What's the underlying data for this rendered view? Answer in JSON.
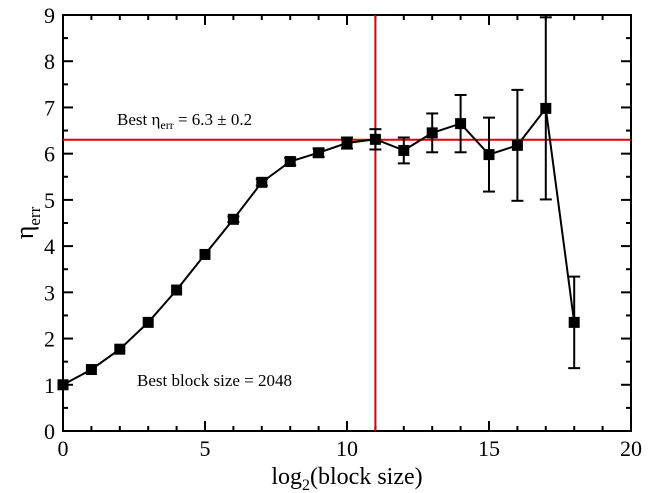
{
  "chart_data": {
    "type": "line",
    "xlabel": "log",
    "xlabel_sub": "2",
    "xlabel_tail": "(block size)",
    "ylabel": "η",
    "ylabel_sub": "err",
    "xlim": [
      0,
      20
    ],
    "ylim": [
      0,
      9
    ],
    "x_ticks": [
      0,
      5,
      10,
      15,
      20
    ],
    "y_ticks": [
      0,
      1,
      2,
      3,
      4,
      5,
      6,
      7,
      8,
      9
    ],
    "grid": false,
    "series": [
      {
        "x": [
          0,
          1,
          2,
          3,
          4,
          5,
          6,
          7,
          8,
          9,
          10,
          11,
          12,
          13,
          14,
          15,
          16,
          17,
          18
        ],
        "y": [
          1.0,
          1.33,
          1.77,
          2.35,
          3.05,
          3.82,
          4.58,
          5.38,
          5.83,
          6.02,
          6.23,
          6.31,
          6.07,
          6.45,
          6.65,
          5.98,
          6.18,
          6.98,
          2.35
        ],
        "err": [
          0.02,
          0.02,
          0.03,
          0.03,
          0.04,
          0.05,
          0.06,
          0.07,
          0.08,
          0.09,
          0.12,
          0.22,
          0.28,
          0.42,
          0.62,
          0.8,
          1.2,
          1.97,
          0.99
        ],
        "color": "#000000",
        "marker": "square"
      }
    ],
    "reference_lines": {
      "horizontal_y": 6.3,
      "vertical_x": 11,
      "color": "#e00000"
    },
    "annotations": {
      "best_eta_prefix": "Best η",
      "best_eta_sub": "err",
      "best_eta_value": " = 6.3 ± 0.2",
      "best_block": "Best block size = 2048"
    }
  }
}
